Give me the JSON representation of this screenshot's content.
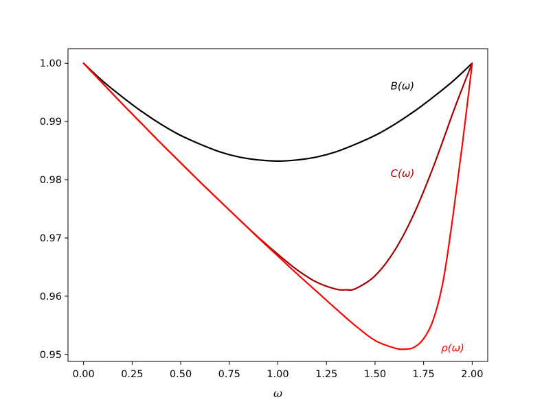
{
  "chart_data": {
    "type": "line",
    "xlabel": "ω",
    "ylabel": "",
    "xlim": [
      -0.08,
      2.08
    ],
    "ylim": [
      0.9488,
      1.0025
    ],
    "xticks": [
      0.0,
      0.25,
      0.5,
      0.75,
      1.0,
      1.25,
      1.5,
      1.75,
      2.0
    ],
    "xtick_labels": [
      "0.00",
      "0.25",
      "0.50",
      "0.75",
      "1.00",
      "1.25",
      "1.50",
      "1.75",
      "2.00"
    ],
    "yticks": [
      0.95,
      0.96,
      0.97,
      0.98,
      0.99,
      1.0
    ],
    "ytick_labels": [
      "0.95",
      "0.96",
      "0.97",
      "0.98",
      "0.99",
      "1.00"
    ],
    "grid": false,
    "legend": "none",
    "series": [
      {
        "name": "B(ω)",
        "color": "#000000",
        "label_pos": [
          1.58,
          0.9955
        ],
        "x": [
          0.0,
          0.1,
          0.2,
          0.3,
          0.4,
          0.5,
          0.6,
          0.7,
          0.8,
          0.9,
          1.0,
          1.1,
          1.2,
          1.3,
          1.4,
          1.5,
          1.6,
          1.7,
          1.8,
          1.9,
          2.0
        ],
        "values": [
          1.0,
          0.9969,
          0.9942,
          0.9917,
          0.9895,
          0.9876,
          0.9861,
          0.9848,
          0.9839,
          0.9834,
          0.9832,
          0.9834,
          0.9839,
          0.9848,
          0.9861,
          0.9876,
          0.9895,
          0.9917,
          0.9942,
          0.9969,
          1.0
        ]
      },
      {
        "name": "C(ω)",
        "color": "#a00000",
        "label_pos": [
          1.58,
          0.9805
        ],
        "x": [
          0.0,
          0.1,
          0.2,
          0.3,
          0.4,
          0.5,
          0.6,
          0.7,
          0.8,
          0.9,
          1.0,
          1.1,
          1.2,
          1.3,
          1.35,
          1.4,
          1.5,
          1.6,
          1.7,
          1.8,
          1.9,
          1.95,
          2.0
        ],
        "values": [
          1.0,
          0.9965,
          0.993,
          0.9896,
          0.9862,
          0.9829,
          0.9796,
          0.9764,
          0.9732,
          0.9701,
          0.9672,
          0.9645,
          0.9624,
          0.9612,
          0.9611,
          0.9613,
          0.9635,
          0.9678,
          0.9741,
          0.9822,
          0.9914,
          0.9958,
          1.0
        ]
      },
      {
        "name": "ρ(ω)",
        "color": "#ff0000",
        "label_pos": [
          1.84,
          0.9505
        ],
        "x": [
          0.0,
          0.1,
          0.2,
          0.3,
          0.4,
          0.5,
          0.6,
          0.7,
          0.8,
          0.9,
          1.0,
          1.1,
          1.2,
          1.3,
          1.4,
          1.5,
          1.6,
          1.65,
          1.7,
          1.75,
          1.8,
          1.85,
          1.9,
          1.95,
          2.0
        ],
        "values": [
          1.0,
          0.9965,
          0.993,
          0.9896,
          0.9862,
          0.9829,
          0.9796,
          0.9764,
          0.9732,
          0.97,
          0.9669,
          0.9638,
          0.9608,
          0.9578,
          0.9549,
          0.9524,
          0.9511,
          0.9509,
          0.9512,
          0.9527,
          0.956,
          0.9625,
          0.9735,
          0.9862,
          1.0
        ]
      }
    ]
  }
}
